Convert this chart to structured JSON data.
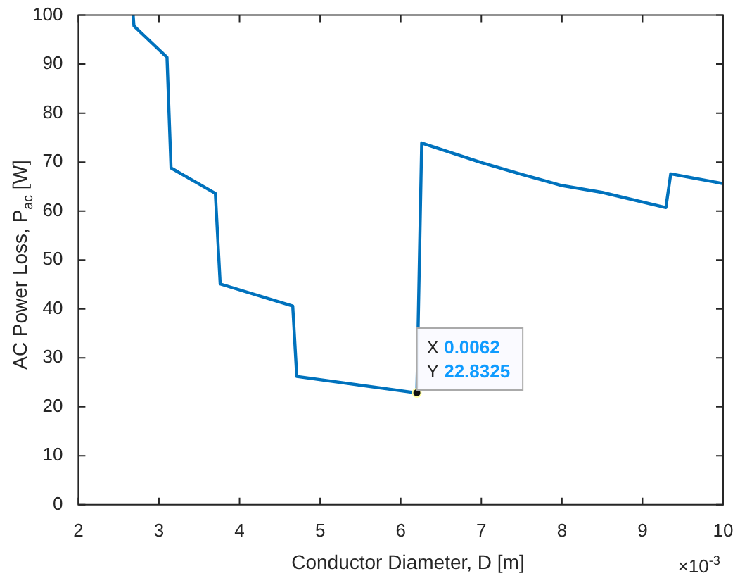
{
  "chart_data": {
    "type": "line",
    "xlabel": "Conductor Diameter, D [m]",
    "ylabel": "AC Power Loss, P$_{ac}$ [W]",
    "x": [
      2.68,
      2.69,
      3.1,
      3.15,
      3.7,
      3.76,
      4.66,
      4.71,
      6.2,
      6.26,
      7,
      7.5,
      8,
      8.5,
      9.29,
      9.35,
      10
    ],
    "series": [
      {
        "color": "#0072bd",
        "values": [
          100,
          97.8,
          91.4,
          68.8,
          63.6,
          45.1,
          40.6,
          26.2,
          22.8325,
          73.9,
          69.9,
          67.5,
          65.2,
          63.8,
          60.7,
          67.6,
          65.6
        ]
      }
    ],
    "xlim": [
      2,
      10
    ],
    "xticks": [
      2,
      3,
      4,
      5,
      6,
      7,
      8,
      9,
      10
    ],
    "ylim": [
      0,
      100
    ],
    "yticks": [
      0,
      10,
      20,
      30,
      40,
      50,
      60,
      70,
      80,
      90,
      100
    ],
    "grid": false,
    "legend": false,
    "marker": "none",
    "line_style": "solid",
    "annotations": [
      {
        "text": "X 0.0062\nY 22.8325",
        "x": 6.2,
        "y": 22.8325
      },
      "×10$^{-3}$"
    ]
  }
}
